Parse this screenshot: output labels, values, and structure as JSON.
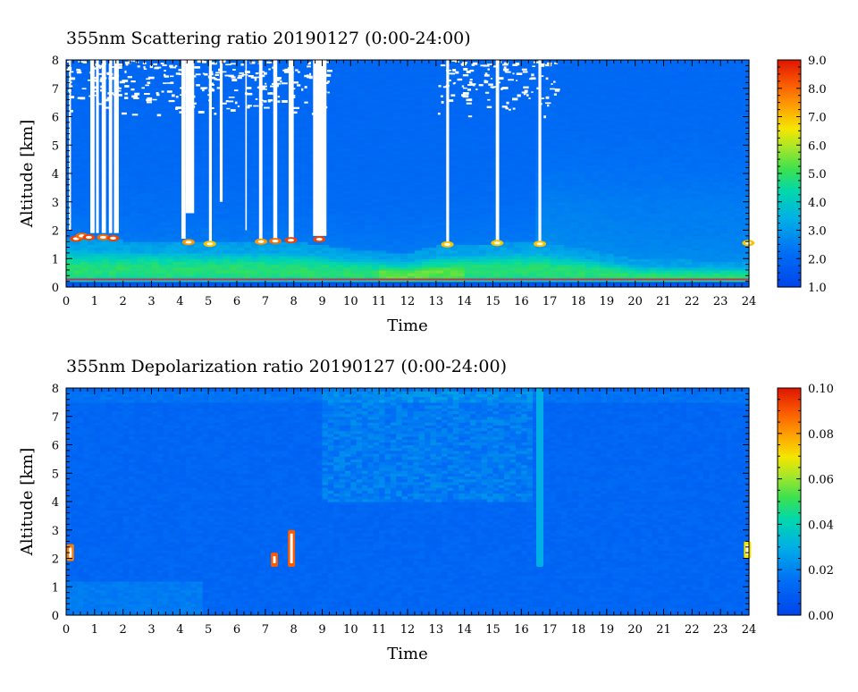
{
  "charts": [
    {
      "type": "heatmap",
      "title": "355nm Scattering ratio  20190127 (0:00-24:00)",
      "xlabel": "Time",
      "ylabel": "Altitude [km]",
      "x_ticks": [
        "0",
        "1",
        "2",
        "3",
        "4",
        "5",
        "6",
        "7",
        "8",
        "9",
        "10",
        "11",
        "12",
        "13",
        "14",
        "15",
        "16",
        "17",
        "18",
        "19",
        "20",
        "21",
        "22",
        "23",
        "24"
      ],
      "y_ticks": [
        "0",
        "1",
        "2",
        "3",
        "4",
        "5",
        "6",
        "7",
        "8"
      ],
      "xlim": [
        0,
        24
      ],
      "ylim": [
        0,
        8
      ],
      "colorbar": {
        "ticks": [
          "1.0",
          "2.0",
          "3.0",
          "4.0",
          "5.0",
          "6.0",
          "7.0",
          "8.0",
          "9.0"
        ],
        "range": [
          1.0,
          9.0
        ]
      },
      "background_value": 2.0,
      "boundary_layer": [
        {
          "t": 0,
          "top": 1.7
        },
        {
          "t": 2,
          "top": 1.65
        },
        {
          "t": 4,
          "top": 1.6
        },
        {
          "t": 6,
          "top": 1.6
        },
        {
          "t": 8,
          "top": 1.6
        },
        {
          "t": 10,
          "top": 1.35
        },
        {
          "t": 12,
          "top": 1.2
        },
        {
          "t": 13,
          "top": 1.45
        },
        {
          "t": 15,
          "top": 1.55
        },
        {
          "t": 16.5,
          "top": 1.6
        },
        {
          "t": 18,
          "top": 1.4
        },
        {
          "t": 20,
          "top": 1.0
        },
        {
          "t": 22,
          "top": 0.95
        },
        {
          "t": 24,
          "top": 0.9
        }
      ],
      "no_data_columns": [
        {
          "t0": 0.1,
          "t1": 0.17,
          "bottom": 2.0
        },
        {
          "t0": 0.85,
          "t1": 1.0,
          "bottom": 1.9
        },
        {
          "t0": 1.05,
          "t1": 1.15,
          "bottom": 1.9
        },
        {
          "t0": 1.25,
          "t1": 1.4,
          "bottom": 1.9
        },
        {
          "t0": 1.5,
          "t1": 1.62,
          "bottom": 1.9
        },
        {
          "t0": 1.68,
          "t1": 1.85,
          "bottom": 1.9
        },
        {
          "t0": 4.05,
          "t1": 4.2,
          "bottom": 1.7
        },
        {
          "t0": 4.2,
          "t1": 4.5,
          "bottom": 2.6
        },
        {
          "t0": 5.02,
          "t1": 5.12,
          "bottom": 1.6
        },
        {
          "t0": 5.4,
          "t1": 5.5,
          "bottom": 3.0
        },
        {
          "t0": 6.3,
          "t1": 6.35,
          "bottom": 2.0
        },
        {
          "t0": 6.78,
          "t1": 6.9,
          "bottom": 1.7
        },
        {
          "t0": 7.28,
          "t1": 7.42,
          "bottom": 1.7
        },
        {
          "t0": 7.82,
          "t1": 8.0,
          "bottom": 1.7
        },
        {
          "t0": 8.68,
          "t1": 9.15,
          "bottom": 1.8
        },
        {
          "t0": 13.36,
          "t1": 13.46,
          "bottom": 1.6
        },
        {
          "t0": 15.1,
          "t1": 15.22,
          "bottom": 1.6
        },
        {
          "t0": 16.6,
          "t1": 16.7,
          "bottom": 1.6
        }
      ],
      "cloud_base_cells": [
        {
          "t": 0.35,
          "alt": 1.7,
          "v": 8.5
        },
        {
          "t": 0.55,
          "alt": 1.8,
          "v": 8.0
        },
        {
          "t": 0.8,
          "alt": 1.75,
          "v": 8.5
        },
        {
          "t": 1.3,
          "alt": 1.75,
          "v": 8.0
        },
        {
          "t": 1.65,
          "alt": 1.72,
          "v": 8.5
        },
        {
          "t": 4.3,
          "alt": 1.58,
          "v": 7.5
        },
        {
          "t": 5.05,
          "alt": 1.52,
          "v": 7.0
        },
        {
          "t": 6.85,
          "alt": 1.6,
          "v": 7.5
        },
        {
          "t": 7.35,
          "alt": 1.62,
          "v": 8.0
        },
        {
          "t": 7.9,
          "alt": 1.65,
          "v": 8.5
        },
        {
          "t": 8.9,
          "alt": 1.68,
          "v": 8.5
        },
        {
          "t": 13.4,
          "alt": 1.5,
          "v": 7.0
        },
        {
          "t": 15.15,
          "alt": 1.55,
          "v": 7.0
        },
        {
          "t": 16.65,
          "alt": 1.52,
          "v": 7.0
        },
        {
          "t": 23.98,
          "alt": 1.55,
          "v": 7.0
        }
      ]
    },
    {
      "type": "heatmap",
      "title": "355nm Depolarization ratio  20190127 (0:00-24:00)",
      "xlabel": "Time",
      "ylabel": "Altitude [km]",
      "x_ticks": [
        "0",
        "1",
        "2",
        "3",
        "4",
        "5",
        "6",
        "7",
        "8",
        "9",
        "10",
        "11",
        "12",
        "13",
        "14",
        "15",
        "16",
        "17",
        "18",
        "19",
        "20",
        "21",
        "22",
        "23",
        "24"
      ],
      "y_ticks": [
        "0",
        "1",
        "2",
        "3",
        "4",
        "5",
        "6",
        "7",
        "8"
      ],
      "xlim": [
        0,
        24
      ],
      "ylim": [
        0,
        8
      ],
      "colorbar": {
        "ticks": [
          "0.00",
          "0.02",
          "0.04",
          "0.06",
          "0.08",
          "0.10"
        ],
        "range": [
          0.0,
          0.1
        ]
      },
      "background_value": 0.012,
      "noisy_region": {
        "t0": 9.0,
        "t1": 16.5,
        "bottom": 4.0,
        "value": 0.018
      },
      "high_cells": [
        {
          "t": 0.15,
          "alt0": 1.9,
          "alt1": 2.5,
          "v": 0.085
        },
        {
          "t": 7.32,
          "alt0": 1.7,
          "alt1": 2.2,
          "v": 0.09
        },
        {
          "t": 7.92,
          "alt0": 1.7,
          "alt1": 3.0,
          "v": 0.09
        },
        {
          "t": 16.65,
          "alt0": 1.7,
          "alt1": 8.0,
          "v": 0.03
        },
        {
          "t": 23.95,
          "alt0": 2.0,
          "alt1": 2.6,
          "v": 0.07
        }
      ]
    }
  ]
}
